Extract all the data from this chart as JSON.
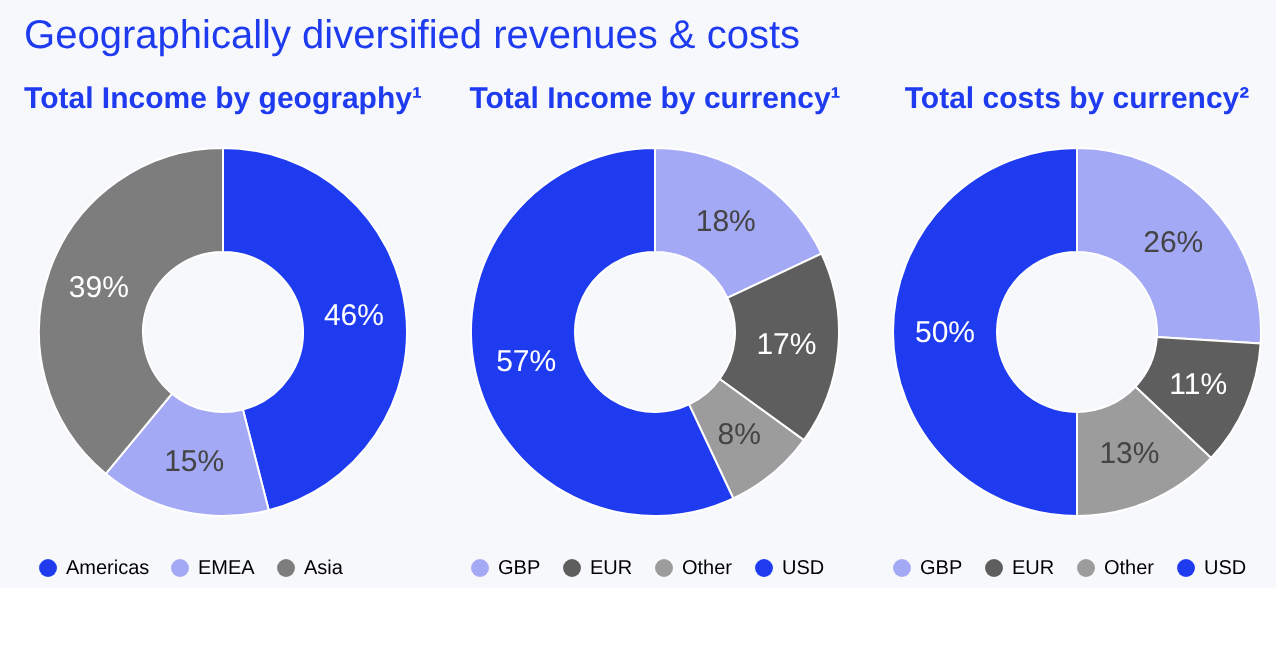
{
  "chart_data": [
    {
      "type": "donut",
      "title": "Total Income by geography¹",
      "annotations": [
        "Geographically diversified revenues & costs"
      ],
      "categories": [
        "Americas",
        "EMEA",
        "Asia"
      ],
      "values": [
        46,
        15,
        39
      ],
      "value_labels": [
        "46%",
        "15%",
        "39%"
      ],
      "colors": [
        "#1f3bf0",
        "#a4a9f6",
        "#7d7d7d"
      ],
      "legend": "bottom"
    },
    {
      "type": "donut",
      "title": "Total Income by currency¹",
      "categories": [
        "GBP",
        "EUR",
        "Other",
        "USD"
      ],
      "values": [
        18,
        17,
        8,
        57
      ],
      "value_labels": [
        "18%",
        "17%",
        "8%",
        "57%"
      ],
      "colors": [
        "#a4a9f6",
        "#5e5e5e",
        "#9c9c9c",
        "#1f3bf0"
      ],
      "legend": "bottom"
    },
    {
      "type": "donut",
      "title": "Total costs by currency²",
      "categories": [
        "GBP",
        "EUR",
        "Other",
        "USD"
      ],
      "values": [
        26,
        11,
        13,
        50
      ],
      "value_labels": [
        "26%",
        "11%",
        "13%",
        "50%"
      ],
      "colors": [
        "#a4a9f6",
        "#5e5e5e",
        "#9c9c9c",
        "#1f3bf0"
      ],
      "legend": "bottom"
    }
  ]
}
